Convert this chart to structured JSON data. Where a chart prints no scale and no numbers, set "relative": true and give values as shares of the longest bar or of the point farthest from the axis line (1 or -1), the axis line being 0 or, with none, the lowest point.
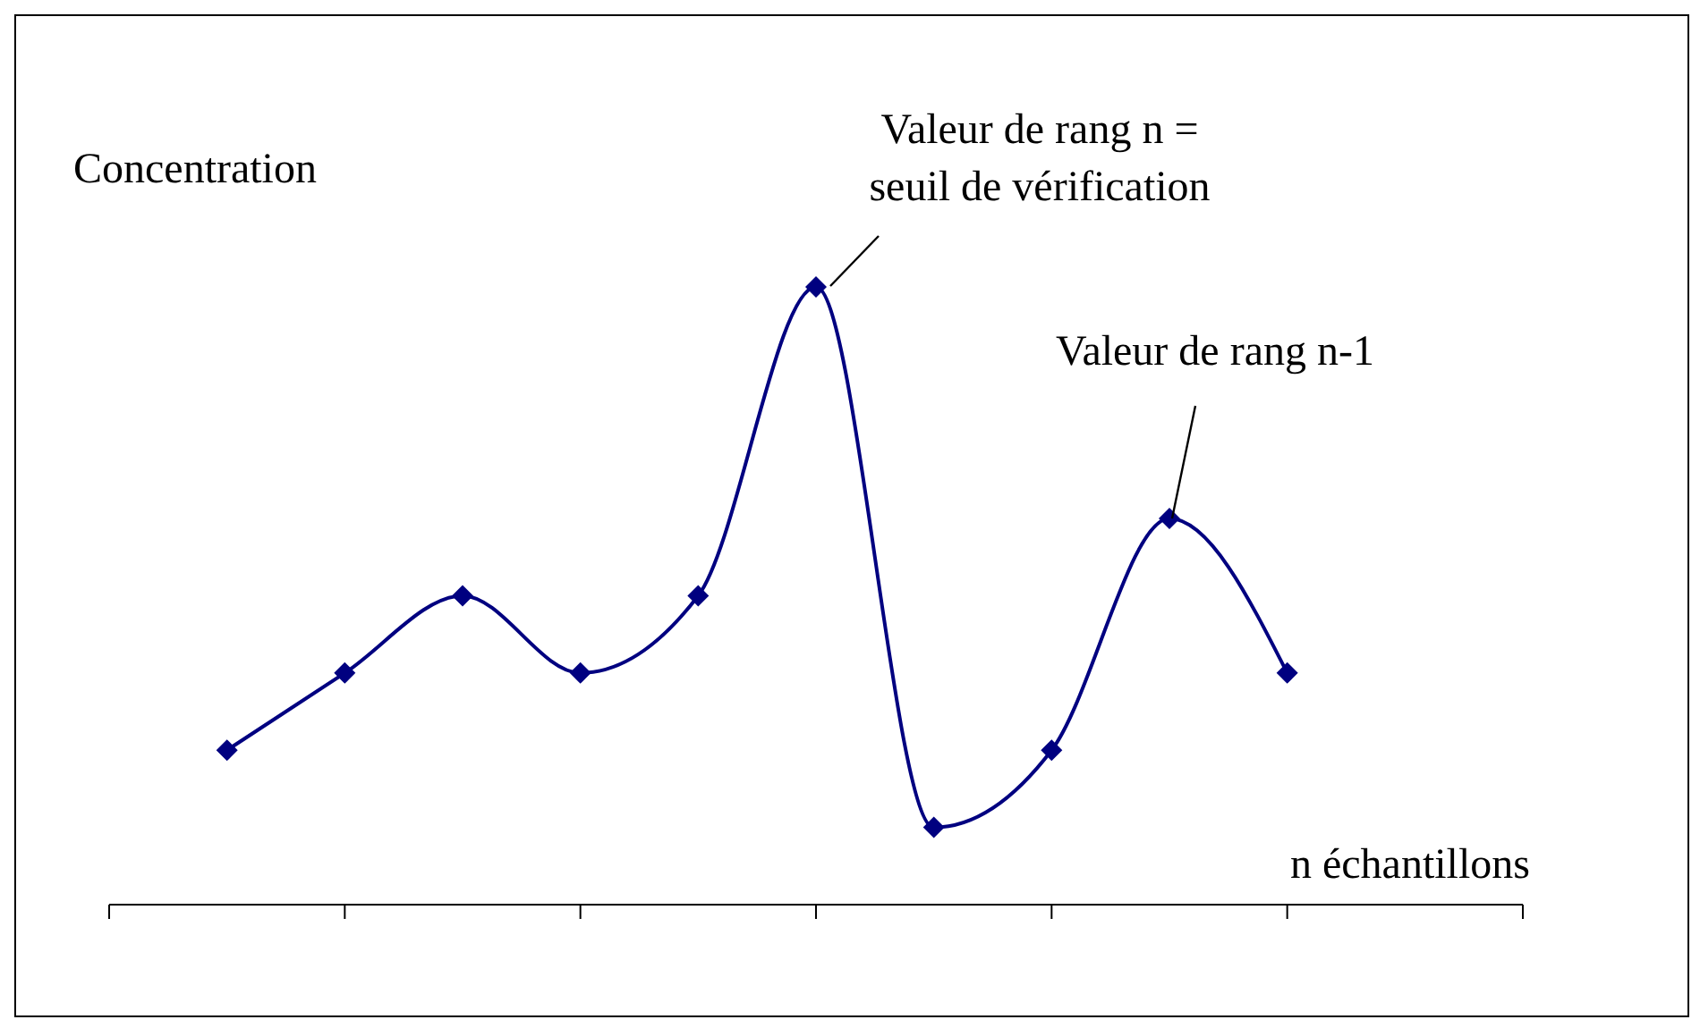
{
  "chart_data": {
    "type": "line",
    "relative": true,
    "xlabel": "n échantillons",
    "ylabel": "Concentration",
    "categories": [
      null,
      null,
      null,
      null,
      null,
      null,
      null,
      null,
      null,
      null
    ],
    "series": [
      {
        "color": "#000080",
        "values": [
          0.25,
          0.375,
          0.5,
          0.375,
          0.5,
          1,
          0.125,
          0.25,
          0.625,
          0.375
        ]
      }
    ],
    "marker": "diamond",
    "line_style": "solid",
    "grid": false,
    "legend": false,
    "annotations": [
      "Valeur de rang n = seuil de vérification",
      "Valeur de rang n-1"
    ]
  }
}
